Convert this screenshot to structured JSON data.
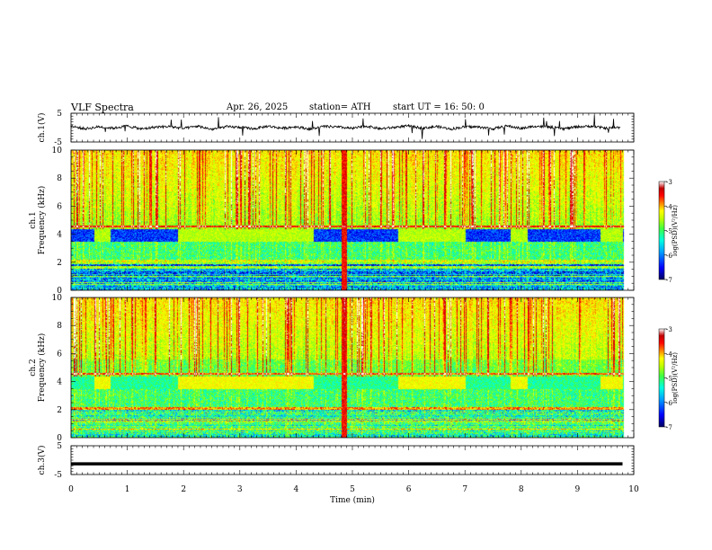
{
  "header": {
    "title": "VLF  Spectra",
    "date": "Apr. 26, 2025",
    "station": "station= ATH",
    "start": "start  UT  =    16: 50: 0"
  },
  "chart_data": [
    {
      "type": "line",
      "panel": "ch1",
      "ylabel": "ch.1(V)",
      "ylim": [
        -5,
        5
      ],
      "yticks": [
        "5",
        "-5"
      ],
      "xlim": [
        0,
        10
      ],
      "x": [
        0,
        0.25,
        0.5,
        0.75,
        1,
        1.25,
        1.5,
        1.75,
        2,
        2.25,
        2.5,
        2.75,
        3,
        3.25,
        3.5,
        3.75,
        4,
        4.25,
        4.5,
        4.75,
        5,
        5.25,
        5.5,
        5.75,
        6,
        6.25,
        6.5,
        6.75,
        7,
        7.25,
        7.5,
        7.75,
        8,
        8.25,
        8.5,
        8.75,
        9,
        9.25,
        9.5,
        9.75
      ],
      "values": [
        0.5,
        -0.4,
        0.3,
        -0.2,
        0.6,
        -0.5,
        0.2,
        0.4,
        -0.3,
        0.5,
        -0.6,
        0.3,
        0.1,
        -0.4,
        0.5,
        -0.2,
        0.3,
        -0.5,
        0.4,
        0.2,
        -0.3,
        0.5,
        -0.4,
        0.1,
        0.6,
        -0.2,
        0.4,
        -0.5,
        0.3,
        0.2,
        -0.4,
        0.6,
        -0.3,
        0.5,
        0.2,
        -0.4,
        0.3,
        0.5,
        -0.2,
        0.1
      ],
      "color": "#000000"
    },
    {
      "type": "heatmap",
      "panel": "ch1-spectrogram",
      "ylabel": "ch.1\nFrequency (kHz)",
      "ylim": [
        0,
        10
      ],
      "yticks": [
        "0",
        "2",
        "4",
        "6",
        "8",
        "10"
      ],
      "xlim": [
        0,
        10
      ],
      "colorbar": {
        "label": "log(PSD)(V²/Hz)",
        "range": [
          -7,
          -3
        ],
        "ticks": [
          "-3",
          "-4",
          "-5",
          "-6",
          "-7"
        ]
      }
    },
    {
      "type": "heatmap",
      "panel": "ch2-spectrogram",
      "ylabel": "ch.2\nFrequency (kHz)",
      "ylim": [
        0,
        10
      ],
      "yticks": [
        "0",
        "2",
        "4",
        "6",
        "8",
        "10"
      ],
      "xlim": [
        0,
        10
      ],
      "colorbar": {
        "label": "log(PSD)(V²/Hz)",
        "range": [
          -7,
          -3
        ],
        "ticks": [
          "-3",
          "-4",
          "-5",
          "-6",
          "-7"
        ]
      }
    },
    {
      "type": "line",
      "panel": "ch3",
      "ylabel": "ch.3(V)",
      "ylim": [
        -5,
        5
      ],
      "yticks": [
        "5",
        "-5"
      ],
      "xlim": [
        0,
        10
      ],
      "x": [
        0,
        9.8
      ],
      "values": [
        -1.3,
        -1.3
      ],
      "color": "#000000"
    }
  ],
  "xaxis": {
    "label": "Time  (min)",
    "ticks": [
      "0",
      "1",
      "2",
      "3",
      "4",
      "5",
      "6",
      "7",
      "8",
      "9",
      "10"
    ],
    "range": [
      0,
      10
    ]
  },
  "colors": {
    "colormap": [
      "#000060",
      "#0000ff",
      "#00a0ff",
      "#00ffe0",
      "#40ff40",
      "#c0ff00",
      "#ffff00",
      "#ff8000",
      "#ff0000",
      "#c00000",
      "#ffffff"
    ],
    "background": "#ffffff",
    "axis": "#000000"
  },
  "spectrogram_features": {
    "band_ranges_kHz": [
      [
        3.5,
        4.4
      ]
    ],
    "bright_segments_min": [
      [
        0.4,
        0.7
      ],
      [
        1.9,
        4.3
      ],
      [
        5.8,
        7.0
      ],
      [
        7.8,
        8.1
      ],
      [
        9.4,
        9.8
      ]
    ],
    "vertical_burst_min": [
      4.8,
      4.9
    ]
  }
}
